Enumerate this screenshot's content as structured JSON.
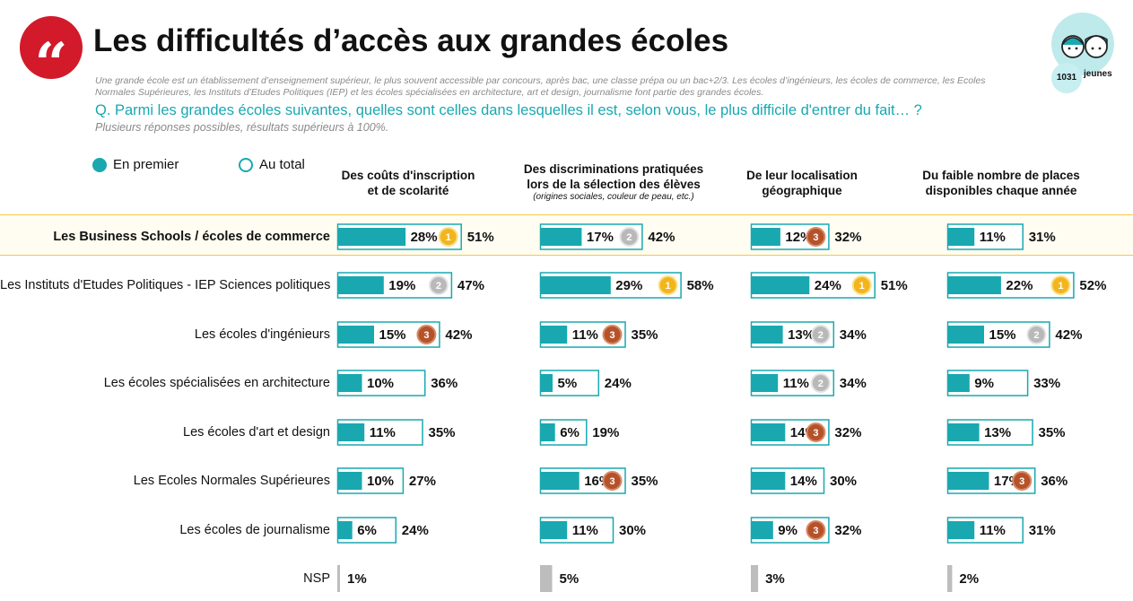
{
  "header": {
    "logo_glyph": "“",
    "title": "Les difficultés d’accès aux grandes écoles",
    "description": "Une grande école est un établissement d’enseignement supérieur, le plus souvent accessible par concours, après bac, une classe prépa ou un bac+2/3. Les écoles d’ingénieurs, les écoles de commerce, les Ecoles Normales Supérieures, les Instituts d’Etudes Politiques (IEP) et les écoles spécialisées en architecture, art et design, journalisme font partie des grandes écoles.",
    "question": "Q. Parmi les grandes écoles suivantes, quelles sont celles dans lesquelles il est, selon vous, le plus difficile d'entrer du fait… ?",
    "note": "Plusieurs réponses possibles, résultats supérieurs à 100%."
  },
  "sample": {
    "count": "1031",
    "label": "jeunes"
  },
  "legend": {
    "first": "En premier",
    "total": "Au total"
  },
  "colors": {
    "accent": "#19a8b0",
    "nsp": "#bdbdbd",
    "highlight_border": "#f7c648",
    "medal_gold": "#f2b51d",
    "medal_silver": "#b9b9b9",
    "medal_bronze": "#b5522a"
  },
  "chart_data": {
    "type": "bar",
    "orientation": "horizontal",
    "columns": [
      {
        "title_lines": [
          "Des coûts d'inscription",
          "et de scolarité"
        ],
        "subtitle": ""
      },
      {
        "title_lines": [
          "Des discriminations pratiquées",
          "lors de la sélection des élèves"
        ],
        "subtitle": "(origines sociales, couleur de peau, etc.)"
      },
      {
        "title_lines": [
          "De leur localisation",
          "géographique"
        ],
        "subtitle": ""
      },
      {
        "title_lines": [
          "Du faible nombre de places",
          "disponibles chaque année"
        ],
        "subtitle": ""
      }
    ],
    "rows": [
      {
        "label": "Les Business Schools / écoles de commerce",
        "highlight": true,
        "first": [
          28,
          17,
          12,
          11
        ],
        "total": [
          51,
          42,
          32,
          31
        ],
        "rank": [
          1,
          2,
          3,
          null
        ]
      },
      {
        "label": "Les Instituts d'Etudes Politiques - IEP Sciences politiques",
        "highlight": false,
        "first": [
          19,
          29,
          24,
          22
        ],
        "total": [
          47,
          58,
          51,
          52
        ],
        "rank": [
          2,
          1,
          1,
          1
        ]
      },
      {
        "label": "Les écoles d'ingénieurs",
        "highlight": false,
        "first": [
          15,
          11,
          13,
          15
        ],
        "total": [
          42,
          35,
          34,
          42
        ],
        "rank": [
          3,
          3,
          2,
          2
        ]
      },
      {
        "label": "Les écoles spécialisées en architecture",
        "highlight": false,
        "first": [
          10,
          5,
          11,
          9
        ],
        "total": [
          36,
          24,
          34,
          33
        ],
        "rank": [
          null,
          null,
          2,
          null
        ]
      },
      {
        "label": "Les écoles d'art et design",
        "highlight": false,
        "first": [
          11,
          6,
          14,
          13
        ],
        "total": [
          35,
          19,
          32,
          35
        ],
        "rank": [
          null,
          null,
          3,
          null
        ]
      },
      {
        "label": "Les Ecoles Normales Supérieures",
        "highlight": false,
        "first": [
          10,
          16,
          14,
          17
        ],
        "total": [
          27,
          35,
          30,
          36
        ],
        "rank": [
          null,
          3,
          null,
          3
        ]
      },
      {
        "label": "Les écoles de journalisme",
        "highlight": false,
        "first": [
          6,
          11,
          9,
          11
        ],
        "total": [
          24,
          30,
          32,
          31
        ],
        "rank": [
          null,
          null,
          3,
          null
        ]
      }
    ],
    "nsp": {
      "label": "NSP",
      "values": [
        1,
        5,
        3,
        2
      ]
    }
  }
}
